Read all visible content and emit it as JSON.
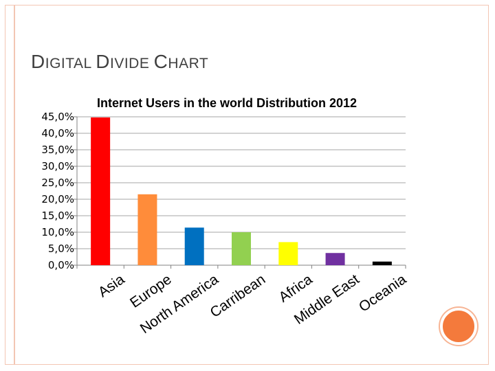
{
  "slide": {
    "title_parts": [
      "D",
      "IGITAL ",
      "D",
      "IVIDE ",
      "C",
      "HART"
    ]
  },
  "chart_data": {
    "type": "bar",
    "title": "Internet Users in the world Distribution  2012",
    "xlabel": "",
    "ylabel": "",
    "categories": [
      "Asia",
      "Europe",
      "North America",
      "Carribean",
      "Africa",
      "Middle East",
      "Oceania"
    ],
    "values": [
      44.8,
      21.5,
      11.4,
      10.0,
      7.0,
      3.7,
      1.1
    ],
    "colors": [
      "#ff0000",
      "#ff8c3a",
      "#0070c0",
      "#92d050",
      "#ffff00",
      "#7030a0",
      "#000000"
    ],
    "ylim": [
      0,
      45
    ],
    "yticks": [
      0,
      5,
      10,
      15,
      20,
      25,
      30,
      35,
      40,
      45
    ],
    "ytick_labels": [
      "0,0%",
      "5,0%",
      "10,0%",
      "15,0%",
      "20,0%",
      "25,0%",
      "30,0%",
      "35,0%",
      "40,0%",
      "45,0%"
    ],
    "grid": true,
    "legend": "none"
  }
}
